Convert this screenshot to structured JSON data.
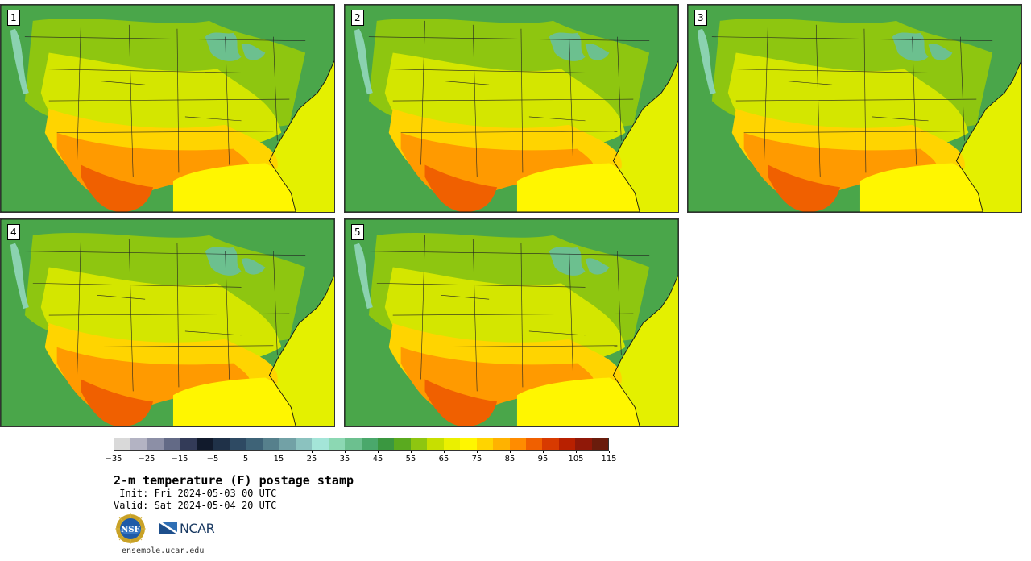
{
  "stamps": [
    {
      "label": "1"
    },
    {
      "label": "2"
    },
    {
      "label": "3"
    },
    {
      "label": "4"
    },
    {
      "label": "5"
    }
  ],
  "colorbar": {
    "colors": [
      "#d9d9d9",
      "#b3b3c3",
      "#8c8fa6",
      "#636a86",
      "#333b58",
      "#111a2c",
      "#1f3148",
      "#2e4a63",
      "#3e6377",
      "#56808c",
      "#72a1a6",
      "#8bc2bf",
      "#a4e5d8",
      "#8cd8b3",
      "#6cc08f",
      "#4aa86b",
      "#3a9740",
      "#5aaa1f",
      "#8ec610",
      "#c7df00",
      "#eaf000",
      "#fff600",
      "#ffd400",
      "#ffb200",
      "#ff8c00",
      "#f06000",
      "#d83a00",
      "#b82000",
      "#901808",
      "#6a1c0c"
    ],
    "ticks": [
      "−35",
      "−25",
      "−15",
      "−5",
      "5",
      "15",
      "25",
      "35",
      "45",
      "55",
      "65",
      "75",
      "85",
      "95",
      "105",
      "115"
    ]
  },
  "title": "2-m temperature (F) postage stamp",
  "init": " Init: Fri 2024-05-03 00 UTC",
  "valid": "Valid: Sat 2024-05-04 20 UTC",
  "footer": {
    "nsf_logo": "nsf-logo",
    "ncar_logo_text": "NCAR",
    "url": "ensemble.ucar.edu"
  }
}
